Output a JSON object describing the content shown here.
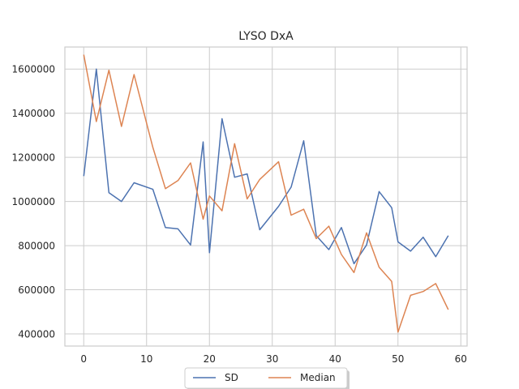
{
  "chart_data": {
    "type": "line",
    "title": "LYSO DxA",
    "xlabel": "",
    "ylabel": "",
    "xlim": [
      -3,
      61
    ],
    "ylim": [
      345000,
      1700000
    ],
    "x_ticks": [
      0,
      10,
      20,
      30,
      40,
      50,
      60
    ],
    "y_ticks": [
      400000,
      600000,
      800000,
      1000000,
      1200000,
      1400000,
      1600000
    ],
    "grid": true,
    "legend_position": "bottom-center",
    "series": [
      {
        "name": "SD",
        "color": "#4c72b0",
        "x": [
          0,
          2,
          4,
          6,
          8,
          11,
          13,
          15,
          17,
          19,
          20,
          22,
          24,
          26,
          28,
          31,
          33,
          35,
          37,
          39,
          41,
          43,
          45,
          47,
          49,
          50,
          52,
          54,
          56,
          58
        ],
        "y": [
          1115000,
          1600000,
          1040000,
          1000000,
          1085000,
          1055000,
          882000,
          876000,
          803000,
          1270000,
          768000,
          1375000,
          1110000,
          1125000,
          872000,
          978000,
          1065000,
          1275000,
          845000,
          782000,
          882000,
          718000,
          803000,
          1045000,
          972000,
          817000,
          775000,
          838000,
          750000,
          845000
        ]
      },
      {
        "name": "Median",
        "color": "#dd8452",
        "x": [
          0,
          2,
          4,
          6,
          8,
          11,
          13,
          15,
          17,
          19,
          20,
          22,
          24,
          26,
          28,
          31,
          33,
          35,
          37,
          39,
          41,
          43,
          45,
          47,
          49,
          50,
          52,
          54,
          56,
          58
        ],
        "y": [
          1665000,
          1362000,
          1595000,
          1340000,
          1575000,
          1245000,
          1058000,
          1095000,
          1175000,
          920000,
          1025000,
          958000,
          1262000,
          1012000,
          1100000,
          1180000,
          938000,
          965000,
          832000,
          888000,
          760000,
          678000,
          858000,
          702000,
          638000,
          408000,
          575000,
          592000,
          628000,
          510000
        ]
      }
    ]
  }
}
